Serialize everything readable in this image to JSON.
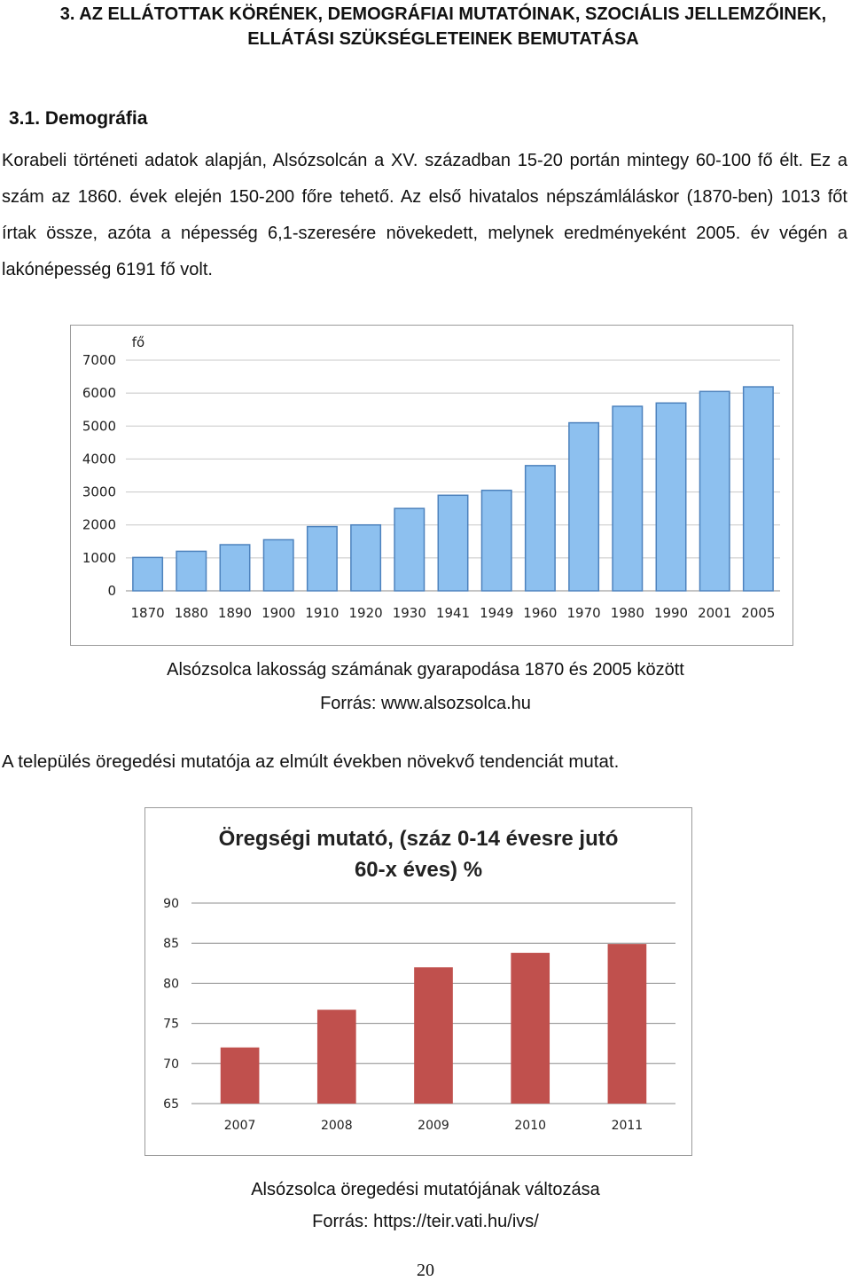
{
  "section": {
    "heading": "3. AZ ELLÁTOTTAK KÖRÉNEK, DEMOGRÁFIAI MUTATÓINAK, SZOCIÁLIS JELLEMZŐINEK, ELLÁTÁSI SZÜKSÉGLETEINEK BEMUTATÁSA",
    "subheading": "3.1. Demográfia",
    "paragraph": "Korabeli történeti adatok alapján, Alsózsolcán a XV. században 15-20 portán mintegy 60-100 fő élt. Ez a szám az 1860. évek elején 150-200 főre tehető. Az első hivatalos népszámláláskor (1870-ben) 1013 főt írtak össze, azóta a népesség 6,1-szeresére növekedett, melynek eredményeként 2005. év végén a lakónépesség 6191 fő volt."
  },
  "figure1": {
    "caption": "Alsózsolca lakosság számának gyarapodása 1870 és 2005 között",
    "source": "Forrás: www.alsozsolca.hu"
  },
  "paragraph2": "A település öregedési mutatója az elmúlt években növekvő tendenciát mutat.",
  "figure2": {
    "caption": "Alsózsolca öregedési mutatójának változása",
    "source": "Forrás: https://teir.vati.hu/ivs/"
  },
  "page_number": "20",
  "chart_data": [
    {
      "type": "bar",
      "title": "",
      "xlabel": "",
      "ylabel": "fő",
      "ylim": [
        0,
        7000
      ],
      "yticks": [
        0,
        1000,
        2000,
        3000,
        4000,
        5000,
        6000,
        7000
      ],
      "grid": true,
      "categories": [
        "1870",
        "1880",
        "1890",
        "1900",
        "1910",
        "1920",
        "1930",
        "1941",
        "1949",
        "1960",
        "1970",
        "1980",
        "1990",
        "2001",
        "2005"
      ],
      "values": [
        1013,
        1200,
        1400,
        1550,
        1950,
        2000,
        2500,
        2900,
        3050,
        3800,
        5100,
        5600,
        5700,
        6050,
        6191
      ],
      "color": "#8dc0ef"
    },
    {
      "type": "bar",
      "title": "Öregségi mutató, (száz 0-14 évesre jutó 60-x éves) %",
      "xlabel": "",
      "ylabel": "",
      "ylim": [
        65,
        90
      ],
      "yticks": [
        65,
        70,
        75,
        80,
        85,
        90
      ],
      "grid": true,
      "categories": [
        "2007",
        "2008",
        "2009",
        "2010",
        "2011"
      ],
      "values": [
        72,
        76.7,
        82,
        83.8,
        84.9
      ],
      "color": "#c0504d"
    }
  ]
}
